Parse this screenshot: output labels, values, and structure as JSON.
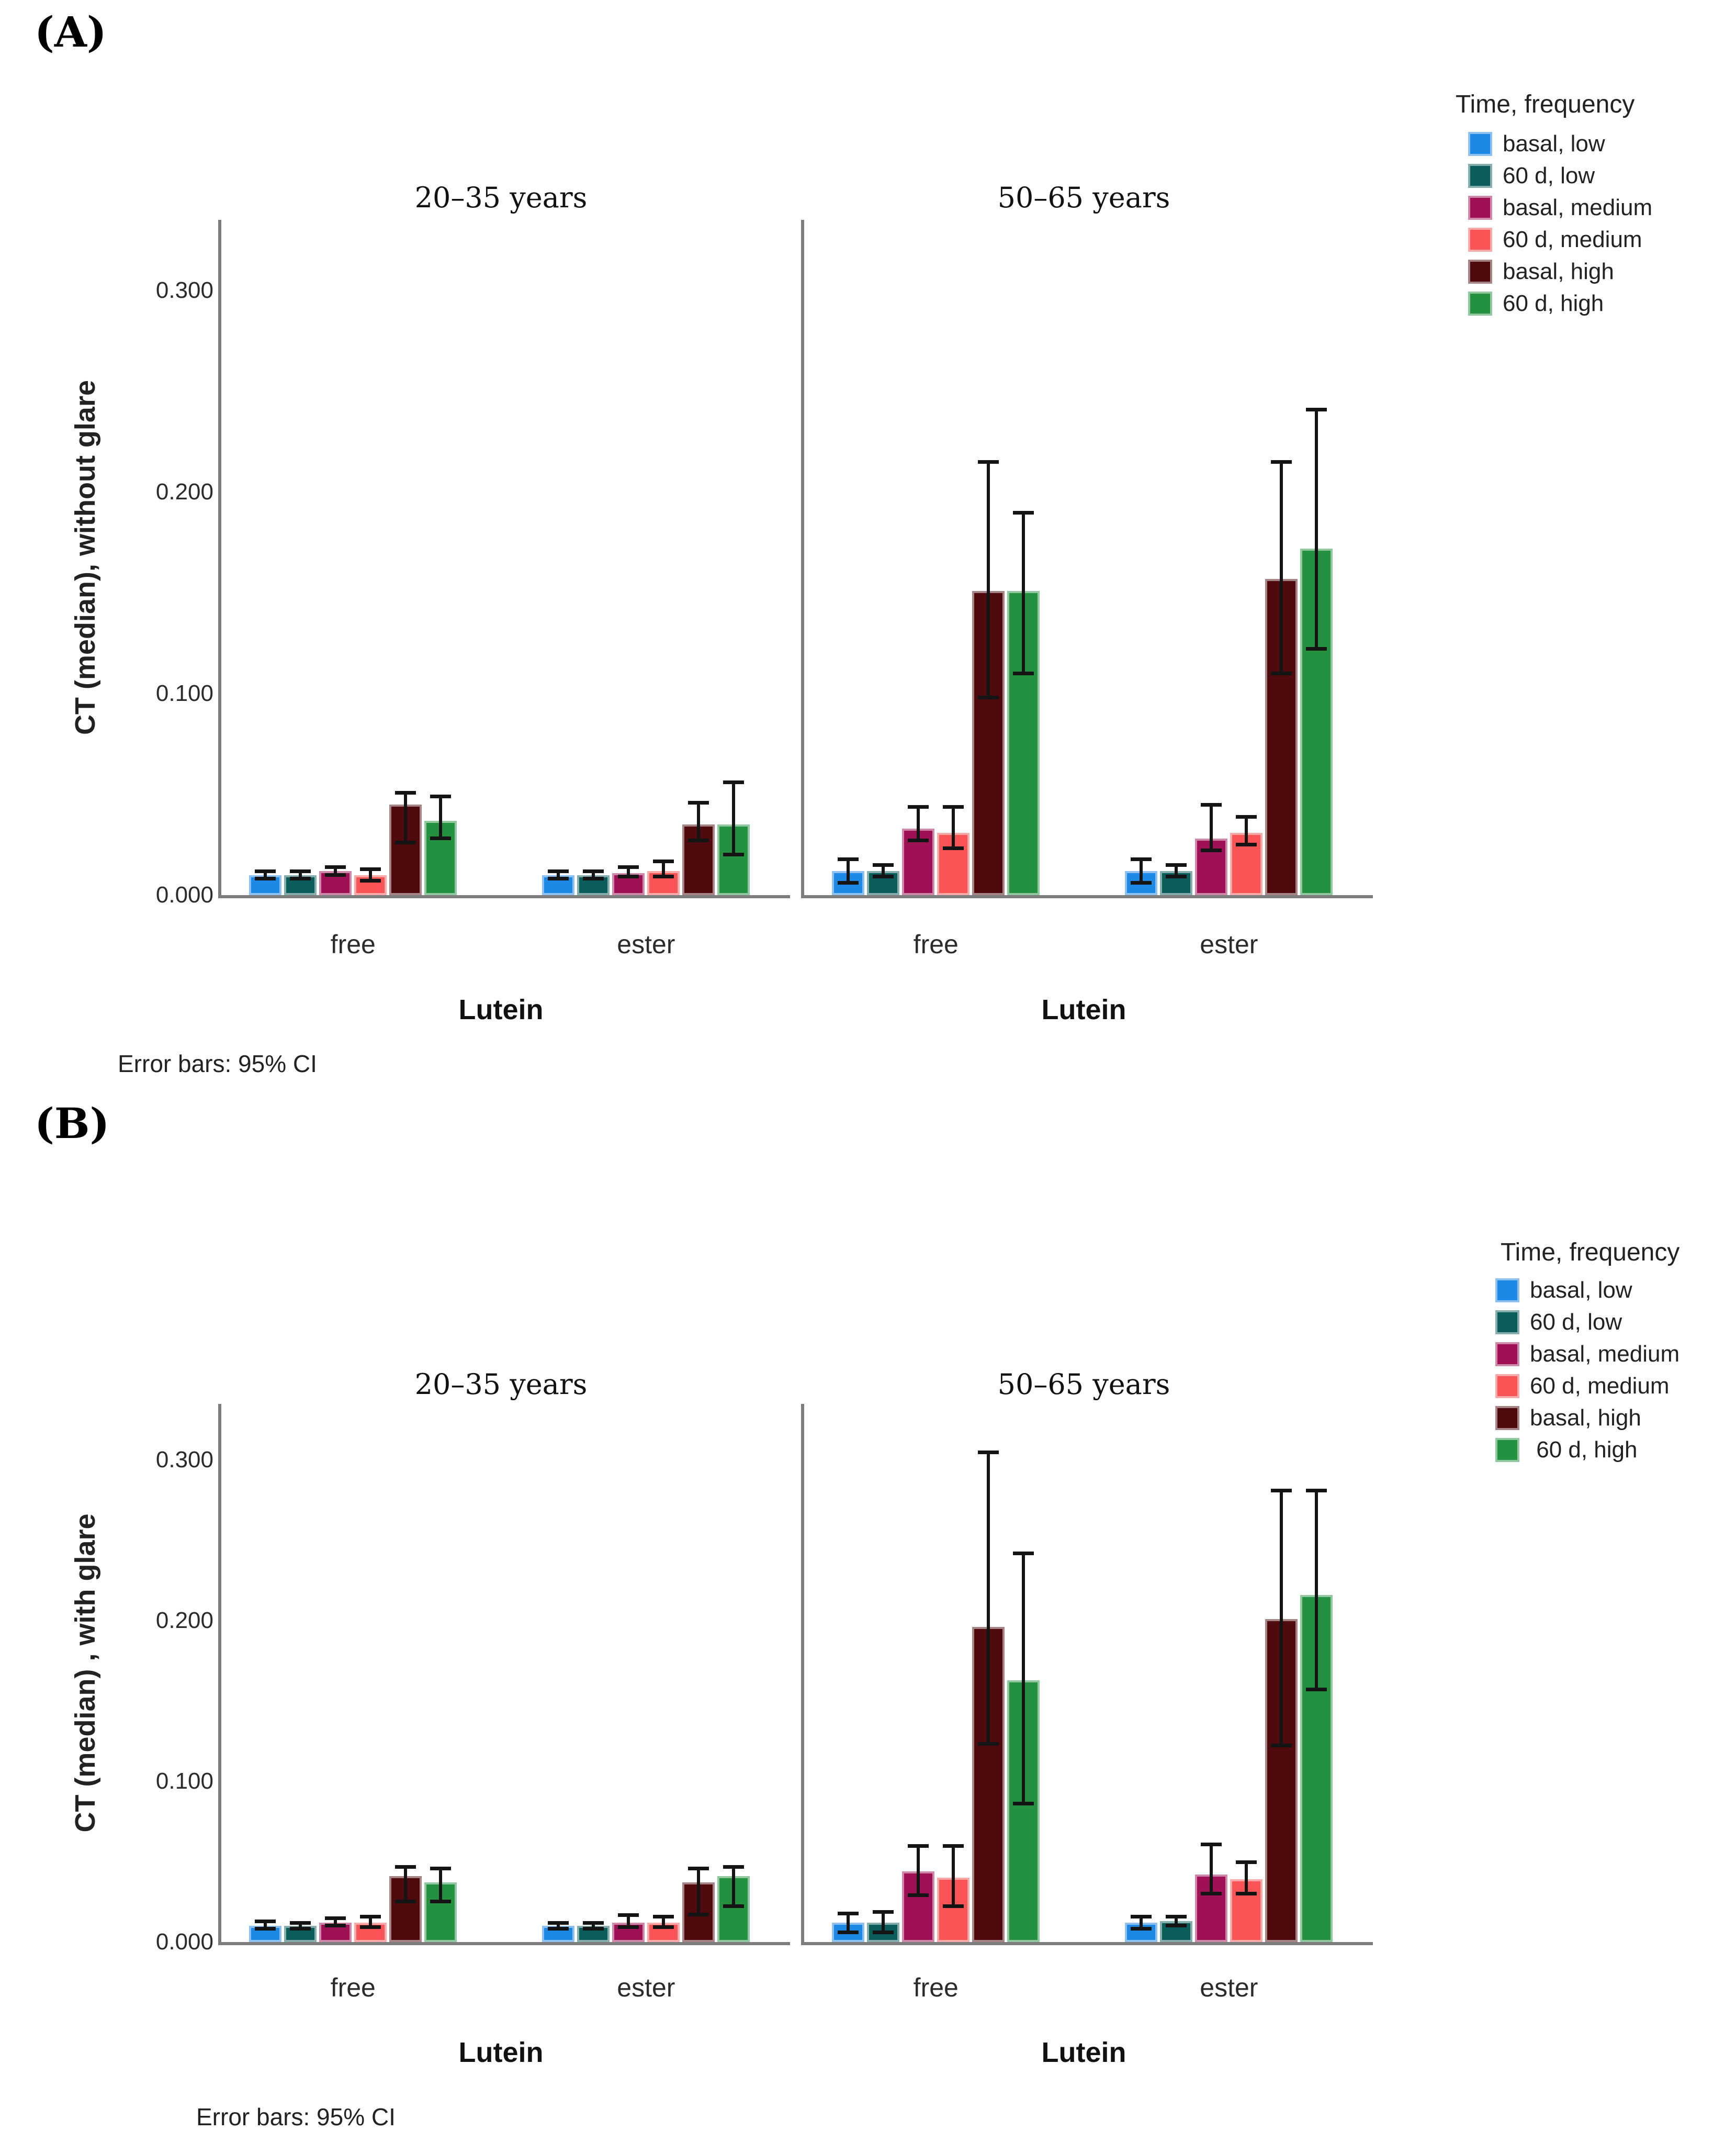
{
  "axis_color": "#7d7d7d",
  "error_bar_color": "#141414",
  "chart_data": [
    {
      "panel_label": "(A)",
      "type": "bar",
      "ylabel": "CT (median), without glare",
      "yticks": [
        "0.300",
        "0.200",
        "0.100",
        "0.000"
      ],
      "ylim": [
        0,
        0.335
      ],
      "xlabel": "Lutein",
      "footnote": "Error bars: 95% CI",
      "legend": {
        "title": "Time, frequency",
        "items": [
          {
            "label": "basal, low",
            "color": "#1E88E5",
            "edge": "#8FC1F0"
          },
          {
            "label": "60 d, low",
            "color": "#0B5D5B",
            "edge": "#85AEAD"
          },
          {
            "label": "basal, medium",
            "color": "#9E1255",
            "edge": "#CE88AA"
          },
          {
            "label": "60 d, medium",
            "color": "#FA5457",
            "edge": "#FCA9AA"
          },
          {
            "label": "basal, high",
            "color": "#4F0A0D",
            "edge": "#A78486"
          },
          {
            "label": "60 d, high",
            "color": "#23913F",
            "edge": "#91C8A0"
          }
        ]
      },
      "subplots": [
        {
          "title": "20–35 years",
          "categories": [
            "free",
            "ester"
          ],
          "series": [
            {
              "name": "basal, low",
              "values": [
                0.01,
                0.01
              ],
              "ci_low": [
                0.008,
                0.008
              ],
              "ci_high": [
                0.012,
                0.012
              ]
            },
            {
              "name": "60 d, low",
              "values": [
                0.01,
                0.01
              ],
              "ci_low": [
                0.008,
                0.008
              ],
              "ci_high": [
                0.012,
                0.012
              ]
            },
            {
              "name": "basal, medium",
              "values": [
                0.012,
                0.011
              ],
              "ci_low": [
                0.01,
                0.009
              ],
              "ci_high": [
                0.014,
                0.014
              ]
            },
            {
              "name": "60 d, medium",
              "values": [
                0.01,
                0.012
              ],
              "ci_low": [
                0.007,
                0.009
              ],
              "ci_high": [
                0.013,
                0.017
              ]
            },
            {
              "name": "basal, high",
              "values": [
                0.045,
                0.035
              ],
              "ci_low": [
                0.026,
                0.027
              ],
              "ci_high": [
                0.051,
                0.046
              ]
            },
            {
              "name": "60 d, high",
              "values": [
                0.037,
                0.035
              ],
              "ci_low": [
                0.028,
                0.02
              ],
              "ci_high": [
                0.049,
                0.056
              ]
            }
          ]
        },
        {
          "title": "50–65 years",
          "categories": [
            "free",
            "ester"
          ],
          "series": [
            {
              "name": "basal, low",
              "values": [
                0.012,
                0.012
              ],
              "ci_low": [
                0.006,
                0.006
              ],
              "ci_high": [
                0.018,
                0.018
              ]
            },
            {
              "name": "60 d, low",
              "values": [
                0.012,
                0.012
              ],
              "ci_low": [
                0.009,
                0.009
              ],
              "ci_high": [
                0.015,
                0.015
              ]
            },
            {
              "name": "basal, medium",
              "values": [
                0.033,
                0.028
              ],
              "ci_low": [
                0.027,
                0.022
              ],
              "ci_high": [
                0.044,
                0.045
              ]
            },
            {
              "name": "60 d, medium",
              "values": [
                0.031,
                0.031
              ],
              "ci_low": [
                0.023,
                0.025
              ],
              "ci_high": [
                0.044,
                0.039
              ]
            },
            {
              "name": "basal, high",
              "values": [
                0.151,
                0.157
              ],
              "ci_low": [
                0.098,
                0.11
              ],
              "ci_high": [
                0.215,
                0.215
              ]
            },
            {
              "name": "60 d, high",
              "values": [
                0.151,
                0.172
              ],
              "ci_low": [
                0.11,
                0.122
              ],
              "ci_high": [
                0.19,
                0.241
              ]
            }
          ]
        }
      ]
    },
    {
      "panel_label": "(B)",
      "type": "bar",
      "ylabel": "CT (median) , with glare",
      "yticks": [
        "0.300",
        "0.200",
        "0.100",
        "0.000"
      ],
      "ylim": [
        0,
        0.335
      ],
      "xlabel": "Lutein",
      "footnote": "Error bars: 95% CI",
      "legend": {
        "title": "Time, frequency",
        "items": [
          {
            "label": "basal, low",
            "color": "#1E88E5",
            "edge": "#8FC1F0"
          },
          {
            "label": "60 d, low",
            "color": "#0B5D5B",
            "edge": "#85AEAD"
          },
          {
            "label": "basal, medium",
            "color": "#9E1255",
            "edge": "#CE88AA"
          },
          {
            "label": "60 d, medium",
            "color": "#FA5457",
            "edge": "#FCA9AA"
          },
          {
            "label": "basal, high",
            "color": "#4F0A0D",
            "edge": "#A78486"
          },
          {
            "label": " 60 d, high",
            "color": "#23913F",
            "edge": "#91C8A0"
          }
        ]
      },
      "subplots": [
        {
          "title": "20–35 years",
          "categories": [
            "free",
            "ester"
          ],
          "series": [
            {
              "name": "basal, low",
              "values": [
                0.01,
                0.01
              ],
              "ci_low": [
                0.008,
                0.008
              ],
              "ci_high": [
                0.013,
                0.012
              ]
            },
            {
              "name": "60 d, low",
              "values": [
                0.01,
                0.01
              ],
              "ci_low": [
                0.008,
                0.008
              ],
              "ci_high": [
                0.012,
                0.012
              ]
            },
            {
              "name": "basal, medium",
              "values": [
                0.012,
                0.012
              ],
              "ci_low": [
                0.01,
                0.009
              ],
              "ci_high": [
                0.015,
                0.017
              ]
            },
            {
              "name": "60 d, medium",
              "values": [
                0.012,
                0.012
              ],
              "ci_low": [
                0.009,
                0.009
              ],
              "ci_high": [
                0.016,
                0.016
              ]
            },
            {
              "name": "basal, high",
              "values": [
                0.041,
                0.037
              ],
              "ci_low": [
                0.025,
                0.017
              ],
              "ci_high": [
                0.047,
                0.046
              ]
            },
            {
              "name": "60 d, high",
              "values": [
                0.037,
                0.041
              ],
              "ci_low": [
                0.025,
                0.022
              ],
              "ci_high": [
                0.046,
                0.047
              ]
            }
          ]
        },
        {
          "title": "50–65 years",
          "categories": [
            "free",
            "ester"
          ],
          "series": [
            {
              "name": "basal, low",
              "values": [
                0.012,
                0.012
              ],
              "ci_low": [
                0.006,
                0.008
              ],
              "ci_high": [
                0.018,
                0.016
              ]
            },
            {
              "name": "60 d, low",
              "values": [
                0.012,
                0.013
              ],
              "ci_low": [
                0.006,
                0.01
              ],
              "ci_high": [
                0.019,
                0.016
              ]
            },
            {
              "name": "basal, medium",
              "values": [
                0.044,
                0.042
              ],
              "ci_low": [
                0.029,
                0.03
              ],
              "ci_high": [
                0.06,
                0.061
              ]
            },
            {
              "name": "60 d, medium",
              "values": [
                0.04,
                0.039
              ],
              "ci_low": [
                0.022,
                0.03
              ],
              "ci_high": [
                0.06,
                0.05
              ]
            },
            {
              "name": "basal, high",
              "values": [
                0.196,
                0.201
              ],
              "ci_low": [
                0.123,
                0.122
              ],
              "ci_high": [
                0.305,
                0.281
              ]
            },
            {
              "name": "60 d, high",
              "values": [
                0.163,
                0.216
              ],
              "ci_low": [
                0.086,
                0.157
              ],
              "ci_high": [
                0.242,
                0.281
              ]
            }
          ]
        }
      ]
    }
  ]
}
